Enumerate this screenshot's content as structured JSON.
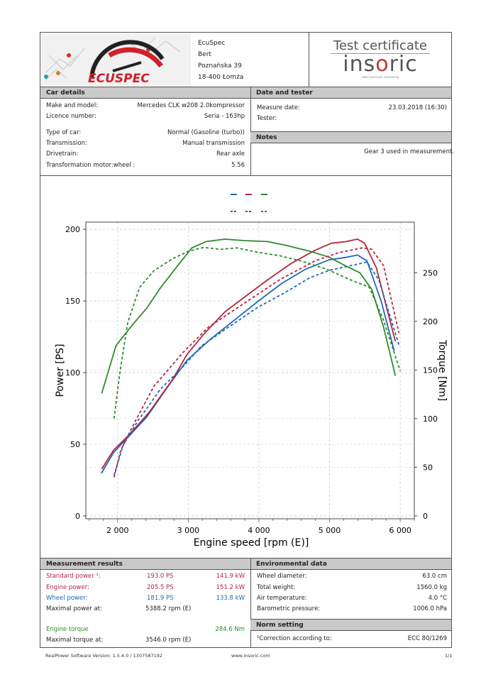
{
  "header": {
    "logo_text": "ECUSPEC",
    "company": "EcuSpec",
    "name": "Bert",
    "street": "Poznańska 39",
    "city": "18-400 Łomża",
    "cert_title": "Test certificate",
    "brand_pre": "ins",
    "brand_o": "o",
    "brand_post": "ric",
    "brand_tagline": "swiss precision measuring"
  },
  "car": {
    "title": "Car details",
    "rows": [
      {
        "label": "Make and model:",
        "value": "Mercedes CLK w208 2.0kompressor"
      },
      {
        "label": "Licence number:",
        "value": "Seria - 163hp"
      },
      {
        "label": "Type of car:",
        "value": "Normal (Gasoline (turbo))"
      },
      {
        "label": "Transmission:",
        "value": "Manual transmission"
      },
      {
        "label": "Drivetrain:",
        "value": "Rear axle"
      },
      {
        "label": "Transformation motor:wheel :",
        "value": "5.56"
      }
    ]
  },
  "date": {
    "title": "Date and tester",
    "measure_label": "Measure date:",
    "measure_value": "23.03.2018 (16:30)",
    "tester_label": "Tester:"
  },
  "notes": {
    "title": "Notes",
    "text": "Gear 3 used in measurement."
  },
  "results": {
    "title": "Measurement results",
    "standard": {
      "label": "Standard power ¹:",
      "ps": "193.0 PS",
      "kw": "141.9 kW"
    },
    "engine": {
      "label": "Engine power:",
      "ps": "205.5 PS",
      "kw": "151.2 kW"
    },
    "wheel": {
      "label": "Wheel power:",
      "ps": "181.9 PS",
      "kw": "133.8 kW"
    },
    "maxpower": {
      "label": "Maximal power at:",
      "value": "5388.2 rpm (E)"
    },
    "torque": {
      "label": "Engine torque",
      "value": "284.6 Nm"
    },
    "maxtorque": {
      "label": "Maximal torque at:",
      "value": "3546.0 rpm (E)"
    }
  },
  "env": {
    "title": "Environmental data",
    "rows": [
      {
        "label": "Wheel diameter:",
        "value": "63.0 cm"
      },
      {
        "label": "Total weight:",
        "value": "1560.0 kg"
      },
      {
        "label": "Air temperature:",
        "value": "4.0 °C"
      },
      {
        "label": "Barometric pressure:",
        "value": "1006.0 hPa"
      }
    ]
  },
  "norm": {
    "title": "Norm setting",
    "label": "¹Correction according to:",
    "value": "ECC 80/1269"
  },
  "footer": {
    "version": "RealPower Software Version: 1.5.4.0 / 1307587192",
    "url": "www.insoric.com",
    "page": "1/1"
  },
  "colors": {
    "blue": "#2069b8",
    "red": "#b5263f",
    "green": "#2f8a2f"
  },
  "chart_data": {
    "type": "line",
    "xlabel": "Engine speed [rpm (E)]",
    "ylabel": "Power [PS]",
    "y2label": "Torque [Nm]",
    "xlim": [
      1550,
      6200
    ],
    "ylim": [
      -2,
      205
    ],
    "y2lim": [
      -3,
      302
    ],
    "xticks": [
      2000,
      3000,
      4000,
      5000,
      6000
    ],
    "xtick_labels": [
      "2 000",
      "3 000",
      "4 000",
      "5 000",
      "6 000"
    ],
    "yticks": [
      0,
      50,
      100,
      150,
      200
    ],
    "ytick_labels": [
      "0",
      "50",
      "100",
      "150",
      "200"
    ],
    "y2ticks": [
      0,
      50,
      100,
      150,
      200,
      250
    ],
    "y2tick_labels": [
      "0",
      "50",
      "100",
      "150",
      "200",
      "250"
    ],
    "grid": true,
    "legend": "top-center",
    "series": [
      {
        "name": "power-blue-solid",
        "axis": "left",
        "color": "#2069b8",
        "dash": false,
        "x": [
          1769,
          1943,
          2178,
          2412,
          2714,
          2982,
          3317,
          3653,
          3988,
          4323,
          4658,
          4994,
          5228,
          5396,
          5530,
          5731,
          5916
        ],
        "y": [
          29.7,
          44.2,
          56.6,
          69,
          90.4,
          108.6,
          123.4,
          136.6,
          149.8,
          162.2,
          172.1,
          178.7,
          180.4,
          182,
          177.9,
          149.8,
          115.2
        ]
      },
      {
        "name": "power-red-solid",
        "axis": "left",
        "color": "#b5263f",
        "dash": false,
        "x": [
          1775,
          1943,
          2178,
          2446,
          2781,
          2982,
          3217,
          3519,
          3854,
          4122,
          4457,
          4792,
          5027,
          5228,
          5396,
          5496,
          5664,
          5932
        ],
        "y": [
          32.7,
          45.9,
          57.4,
          72.3,
          95.4,
          112.7,
          126.7,
          142.4,
          154.8,
          164.7,
          176.2,
          185.3,
          190.3,
          191.4,
          193.1,
          190.3,
          173,
          121.8
        ]
      },
      {
        "name": "torque-green-solid",
        "axis": "right",
        "color": "#2f8a2f",
        "dash": false,
        "x": [
          1775,
          1977,
          2211,
          2412,
          2613,
          2848,
          3049,
          3250,
          3519,
          3787,
          4122,
          4390,
          4725,
          4994,
          5228,
          5429,
          5597,
          5765,
          5932
        ],
        "y": [
          126,
          175,
          196.5,
          213.5,
          235,
          257,
          275.5,
          282,
          284.5,
          283,
          282,
          278,
          272,
          266,
          257,
          250,
          233,
          194,
          144
        ]
      },
      {
        "name": "power-blue-dashed",
        "axis": "left",
        "color": "#2069b8",
        "dash": true,
        "x": [
          1950,
          2077,
          2278,
          2613,
          2949,
          3183,
          3519,
          3988,
          4390,
          4725,
          4994,
          5295,
          5530,
          5698,
          5983
        ],
        "y": [
          28.5,
          49.2,
          65.7,
          88.8,
          105.3,
          118.5,
          130,
          145.7,
          156.4,
          166.3,
          171.3,
          174.6,
          177.1,
          164.7,
          119.3
        ]
      },
      {
        "name": "power-red-dashed",
        "axis": "left",
        "color": "#b5263f",
        "dash": true,
        "x": [
          1950,
          2044,
          2245,
          2513,
          2916,
          3284,
          3787,
          4290,
          4792,
          5128,
          5463,
          5597,
          5765,
          5983
        ],
        "y": [
          26.9,
          45.9,
          65.7,
          90.4,
          113.5,
          131.7,
          148.2,
          164.7,
          177.9,
          183.7,
          187,
          186.1,
          174.6,
          127.6
        ]
      },
      {
        "name": "torque-green-dashed",
        "axis": "right",
        "color": "#2f8a2f",
        "dash": true,
        "x": [
          1950,
          2027,
          2144,
          2312,
          2513,
          2781,
          3000,
          3217,
          3452,
          3686,
          3988,
          4290,
          4625,
          4960,
          5295,
          5563,
          5765,
          6000
        ],
        "y": [
          100,
          145,
          199,
          235,
          252,
          264.5,
          272,
          276,
          274,
          275.5,
          271,
          267.5,
          261.5,
          253.6,
          242.7,
          235,
          201,
          149
        ]
      }
    ]
  }
}
